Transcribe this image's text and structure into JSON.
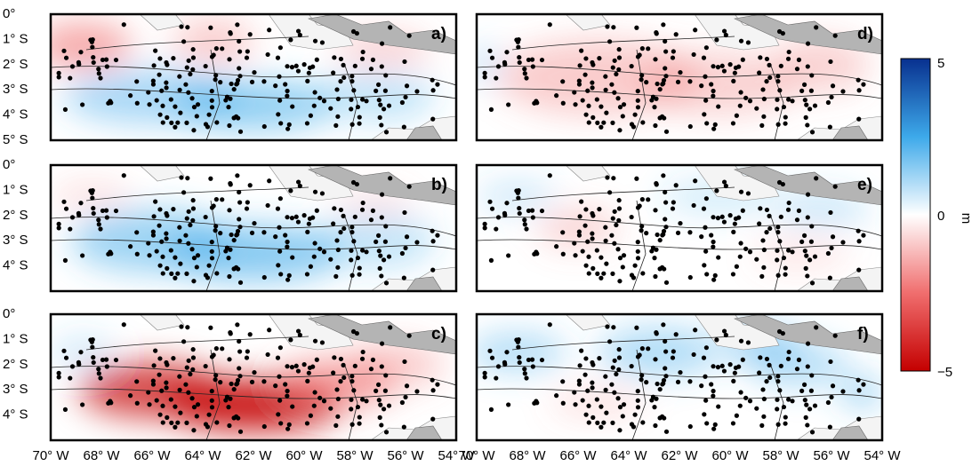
{
  "figure": {
    "colors": {
      "positive": "#08308f",
      "mid_positive": "#3da9ea",
      "zero": "#ffffff",
      "mid_negative": "#f06e6e",
      "negative": "#c40000",
      "station": "#000000",
      "land": "#b4b4b4",
      "outside": "#f4f4f4"
    },
    "lat_ticks": [
      "0°",
      "1° S",
      "2° S",
      "3° S",
      "4° S",
      "5° S"
    ],
    "lon_ticks": [
      "70° W",
      "68° W",
      "66° W",
      "64° W",
      "62° W",
      "60° W",
      "58° W",
      "56° W",
      "54° W"
    ],
    "panels": [
      {
        "id": "a",
        "label": "a)",
        "pattern": "red north / blue south",
        "sign": 1
      },
      {
        "id": "b",
        "label": "b)",
        "pattern": "blue center",
        "sign": 1
      },
      {
        "id": "c",
        "label": "c)",
        "pattern": "red center",
        "sign": -1
      },
      {
        "id": "d",
        "label": "d)",
        "pattern": "light red",
        "sign": -1
      },
      {
        "id": "e",
        "label": "e)",
        "pattern": "weak mixed",
        "sign": 1
      },
      {
        "id": "f",
        "label": "f)",
        "pattern": "light blue",
        "sign": 1
      }
    ],
    "colorbar": {
      "unit": "m",
      "max_label": "5",
      "zero_label": "0",
      "min_label": "−5",
      "range": [
        -5,
        5
      ]
    }
  }
}
